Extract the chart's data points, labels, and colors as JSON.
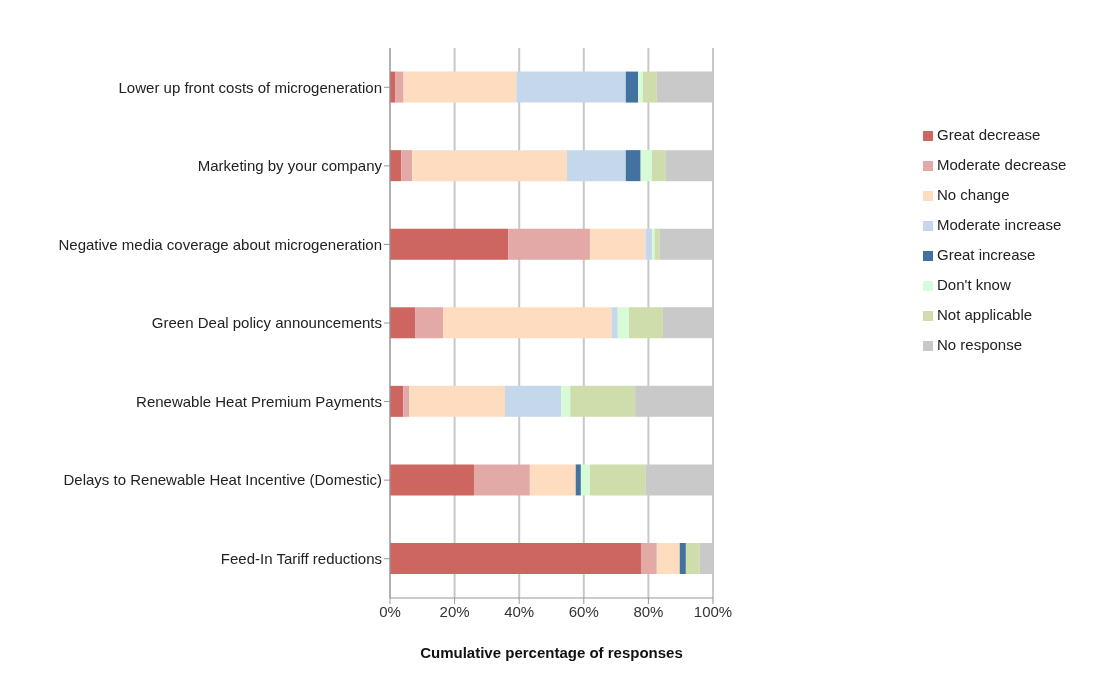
{
  "chart_data": {
    "type": "bar",
    "orientation": "horizontal",
    "stacked": true,
    "xlabel": "Cumulative percentage of responses",
    "categories": [
      "Lower up front costs of microgeneration",
      "Marketing by your company",
      "Negative media coverage about microgeneration",
      "Green Deal policy announcements",
      "Renewable Heat Premium Payments",
      "Delays to Renewable Heat Incentive (Domestic)",
      "Feed-In Tariff reductions"
    ],
    "series": [
      {
        "name": "Great decrease",
        "color": "#cd6660",
        "values": [
          1.7,
          3.5,
          36.6,
          7.9,
          4.1,
          26.0,
          77.7
        ]
      },
      {
        "name": "Moderate decrease",
        "color": "#e3a9a7",
        "values": [
          2.5,
          3.4,
          25.3,
          8.6,
          1.9,
          17.3,
          4.9
        ]
      },
      {
        "name": "No change",
        "color": "#fddcc0",
        "values": [
          34.9,
          47.9,
          17.2,
          52.1,
          29.6,
          14.2,
          7.1
        ]
      },
      {
        "name": "Moderate increase",
        "color": "#c5d7ea",
        "values": [
          33.9,
          18.2,
          2.0,
          1.9,
          17.4,
          0,
          0
        ]
      },
      {
        "name": "Great increase",
        "color": "#4472a0",
        "values": [
          3.8,
          4.6,
          0,
          0,
          0,
          1.6,
          1.9
        ]
      },
      {
        "name": "Don't know",
        "color": "#d7fbd7",
        "values": [
          1.5,
          3.5,
          0.8,
          3.5,
          2.8,
          2.8,
          0
        ]
      },
      {
        "name": "Not applicable",
        "color": "#cfdcab",
        "values": [
          4.3,
          4.3,
          1.6,
          10.5,
          20.1,
          17.3,
          4.3
        ]
      },
      {
        "name": "No response",
        "color": "#c9c9c9",
        "values": [
          17.4,
          14.6,
          16.5,
          15.5,
          24.1,
          20.8,
          4.1
        ]
      }
    ],
    "xlim": [
      0,
      100
    ],
    "xticks": [
      {
        "value": 0,
        "label": "0%"
      },
      {
        "value": 20,
        "label": "20%"
      },
      {
        "value": 40,
        "label": "40%"
      },
      {
        "value": 60,
        "label": "60%"
      },
      {
        "value": 80,
        "label": "80%"
      },
      {
        "value": 100,
        "label": "100%"
      }
    ],
    "grid": "x",
    "legend": "right"
  }
}
